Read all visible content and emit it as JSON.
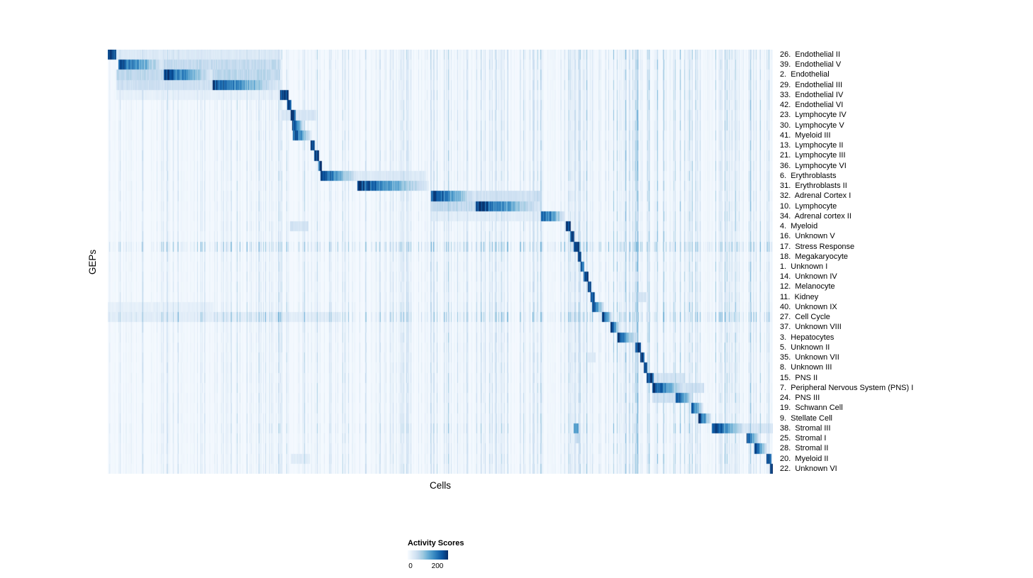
{
  "chart_data": {
    "type": "heatmap",
    "title": "",
    "xlabel": "Cells",
    "ylabel": "GEPs",
    "colormap": "Blues",
    "colormap_stops": [
      "#f7fbff",
      "#deebf7",
      "#c6dbef",
      "#9ecae1",
      "#6baed6",
      "#4292c6",
      "#2171b5",
      "#08519c",
      "#08306b"
    ],
    "vmax": 220,
    "seed": 1337,
    "legend": {
      "title": "Activity Scores",
      "ticks": [
        "0",
        "200"
      ]
    },
    "axis_note": "rows are GEPs ordered to form a diagonal of peak activity across cell clusters; segments are [startFrac, endFrac, peakValue, gradientFlag]",
    "rows": [
      {
        "label": "26.  Endothelial II",
        "noise": 1.1,
        "segments": [
          [
            0.0,
            0.012,
            215,
            0
          ],
          [
            0.012,
            0.259,
            30,
            0
          ]
        ]
      },
      {
        "label": "39.  Endothelial V",
        "noise": 1.0,
        "segments": [
          [
            0.015,
            0.084,
            210,
            1
          ],
          [
            0.084,
            0.259,
            55,
            0
          ]
        ]
      },
      {
        "label": "2.  Endothelial",
        "noise": 1.0,
        "segments": [
          [
            0.012,
            0.084,
            60,
            0
          ],
          [
            0.084,
            0.157,
            215,
            1
          ],
          [
            0.157,
            0.259,
            60,
            0
          ]
        ]
      },
      {
        "label": "29.  Endothelial III",
        "noise": 1.0,
        "segments": [
          [
            0.012,
            0.157,
            45,
            0
          ],
          [
            0.157,
            0.258,
            210,
            1
          ]
        ]
      },
      {
        "label": "33.  Endothelial IV",
        "noise": 1.0,
        "segments": [
          [
            0.012,
            0.258,
            18,
            0
          ],
          [
            0.258,
            0.271,
            215,
            0
          ]
        ]
      },
      {
        "label": "42.  Endothelial VI",
        "noise": 1.0,
        "segments": [
          [
            0.269,
            0.276,
            210,
            0
          ]
        ]
      },
      {
        "label": "23.  Lymphocyte IV",
        "noise": 1.0,
        "segments": [
          [
            0.262,
            0.313,
            35,
            0
          ],
          [
            0.274,
            0.282,
            190,
            0
          ]
        ]
      },
      {
        "label": "30.  Lymphocyte V",
        "noise": 1.0,
        "segments": [
          [
            0.277,
            0.295,
            215,
            1
          ]
        ]
      },
      {
        "label": "41.  Myeloid III",
        "noise": 1.0,
        "segments": [
          [
            0.278,
            0.305,
            215,
            1
          ]
        ]
      },
      {
        "label": "13.  Lymphocyte II",
        "noise": 1.0,
        "segments": [
          [
            0.304,
            0.311,
            210,
            0
          ]
        ]
      },
      {
        "label": "21.  Lymphocyte III",
        "noise": 1.0,
        "segments": [
          [
            0.31,
            0.317,
            200,
            0
          ]
        ]
      },
      {
        "label": "36.  Lymphocyte VI",
        "noise": 1.0,
        "segments": [
          [
            0.316,
            0.321,
            195,
            0
          ]
        ]
      },
      {
        "label": "6.  Erythroblasts",
        "noise": 1.0,
        "segments": [
          [
            0.319,
            0.375,
            215,
            1
          ],
          [
            0.375,
            0.478,
            30,
            0
          ]
        ]
      },
      {
        "label": "31.  Erythroblasts II",
        "noise": 1.0,
        "segments": [
          [
            0.375,
            0.482,
            205,
            1
          ]
        ]
      },
      {
        "label": "32.  Adrenal Cortex I",
        "noise": 1.0,
        "segments": [
          [
            0.486,
            0.553,
            215,
            1
          ],
          [
            0.553,
            0.651,
            45,
            0
          ]
        ]
      },
      {
        "label": "10.  Lymphocyte",
        "noise": 1.0,
        "segments": [
          [
            0.486,
            0.553,
            55,
            0
          ],
          [
            0.553,
            0.65,
            215,
            1
          ]
        ]
      },
      {
        "label": "34.  Adrenal cortex II",
        "noise": 1.0,
        "segments": [
          [
            0.486,
            0.651,
            22,
            0
          ],
          [
            0.651,
            0.687,
            215,
            1
          ]
        ]
      },
      {
        "label": "4.  Myeloid",
        "noise": 1.0,
        "segments": [
          [
            0.273,
            0.301,
            38,
            0
          ],
          [
            0.688,
            0.696,
            210,
            0
          ]
        ]
      },
      {
        "label": "16.  Unknown V",
        "noise": 1.0,
        "segments": [
          [
            0.695,
            0.701,
            200,
            0
          ]
        ]
      },
      {
        "label": "17.  Stress Response",
        "noise": 2.8,
        "segments": [
          [
            0.7,
            0.708,
            215,
            0
          ]
        ]
      },
      {
        "label": "18.  Megakaryocyte",
        "noise": 1.0,
        "segments": [
          [
            0.706,
            0.712,
            190,
            0
          ]
        ]
      },
      {
        "label": "1.  Unknown I",
        "noise": 1.0,
        "segments": [
          [
            0.711,
            0.716,
            185,
            0
          ]
        ]
      },
      {
        "label": "14.  Unknown IV",
        "noise": 1.0,
        "segments": [
          [
            0.715,
            0.722,
            195,
            0
          ]
        ]
      },
      {
        "label": "12.  Melanocyte",
        "noise": 1.0,
        "segments": [
          [
            0.721,
            0.727,
            200,
            0
          ]
        ]
      },
      {
        "label": "11.  Kidney",
        "noise": 1.0,
        "segments": [
          [
            0.726,
            0.732,
            205,
            0
          ],
          [
            0.793,
            0.81,
            35,
            0
          ]
        ]
      },
      {
        "label": "40.  Unknown IX",
        "noise": 1.2,
        "segments": [
          [
            0.728,
            0.746,
            215,
            1
          ],
          [
            0.0,
            0.158,
            18,
            0
          ]
        ]
      },
      {
        "label": "27.  Cell Cycle",
        "noise": 2.4,
        "segments": [
          [
            0.743,
            0.758,
            215,
            1
          ],
          [
            0.0,
            0.35,
            22,
            0
          ]
        ]
      },
      {
        "label": "37.  Unknown VIII",
        "noise": 1.0,
        "segments": [
          [
            0.755,
            0.77,
            215,
            1
          ]
        ]
      },
      {
        "label": "3.  Hepatocytes",
        "noise": 1.0,
        "segments": [
          [
            0.766,
            0.794,
            215,
            1
          ]
        ]
      },
      {
        "label": "5.  Unknown II",
        "noise": 1.0,
        "segments": [
          [
            0.793,
            0.801,
            200,
            0
          ]
        ]
      },
      {
        "label": "35.  Unknown VII",
        "noise": 1.0,
        "segments": [
          [
            0.8,
            0.806,
            195,
            0
          ],
          [
            0.721,
            0.733,
            30,
            0
          ]
        ]
      },
      {
        "label": "8.  Unknown III",
        "noise": 1.0,
        "segments": [
          [
            0.805,
            0.811,
            195,
            0
          ]
        ]
      },
      {
        "label": "15.  PNS II",
        "noise": 1.0,
        "segments": [
          [
            0.81,
            0.82,
            200,
            0
          ],
          [
            0.82,
            0.867,
            40,
            0
          ]
        ]
      },
      {
        "label": "7.  Peripheral Nervous System (PNS) I",
        "noise": 1.0,
        "segments": [
          [
            0.818,
            0.868,
            215,
            1
          ],
          [
            0.868,
            0.896,
            45,
            0
          ]
        ]
      },
      {
        "label": "24.  PNS III",
        "noise": 1.0,
        "segments": [
          [
            0.818,
            0.853,
            45,
            0
          ],
          [
            0.853,
            0.88,
            210,
            1
          ]
        ]
      },
      {
        "label": "19.  Schwann Cell",
        "noise": 1.0,
        "segments": [
          [
            0.877,
            0.895,
            215,
            1
          ]
        ]
      },
      {
        "label": "9.  Stellate Cell",
        "noise": 1.0,
        "segments": [
          [
            0.888,
            0.907,
            215,
            1
          ]
        ]
      },
      {
        "label": "38.  Stromal III",
        "noise": 1.2,
        "segments": [
          [
            0.908,
            0.958,
            215,
            1
          ],
          [
            0.7,
            0.707,
            120,
            0
          ],
          [
            0.958,
            1.0,
            35,
            0
          ]
        ]
      },
      {
        "label": "25.  Stromal I",
        "noise": 1.0,
        "segments": [
          [
            0.96,
            0.979,
            210,
            1
          ],
          [
            0.703,
            0.71,
            60,
            0
          ]
        ]
      },
      {
        "label": "28.  Stromal II",
        "noise": 1.0,
        "segments": [
          [
            0.972,
            0.991,
            215,
            1
          ]
        ]
      },
      {
        "label": "20.  Myeloid II",
        "noise": 1.0,
        "segments": [
          [
            0.99,
            0.997,
            210,
            0
          ],
          [
            0.275,
            0.303,
            25,
            0
          ]
        ]
      },
      {
        "label": "22.  Unknown VI",
        "noise": 1.0,
        "segments": [
          [
            0.995,
            1.0,
            215,
            0
          ]
        ]
      }
    ]
  }
}
